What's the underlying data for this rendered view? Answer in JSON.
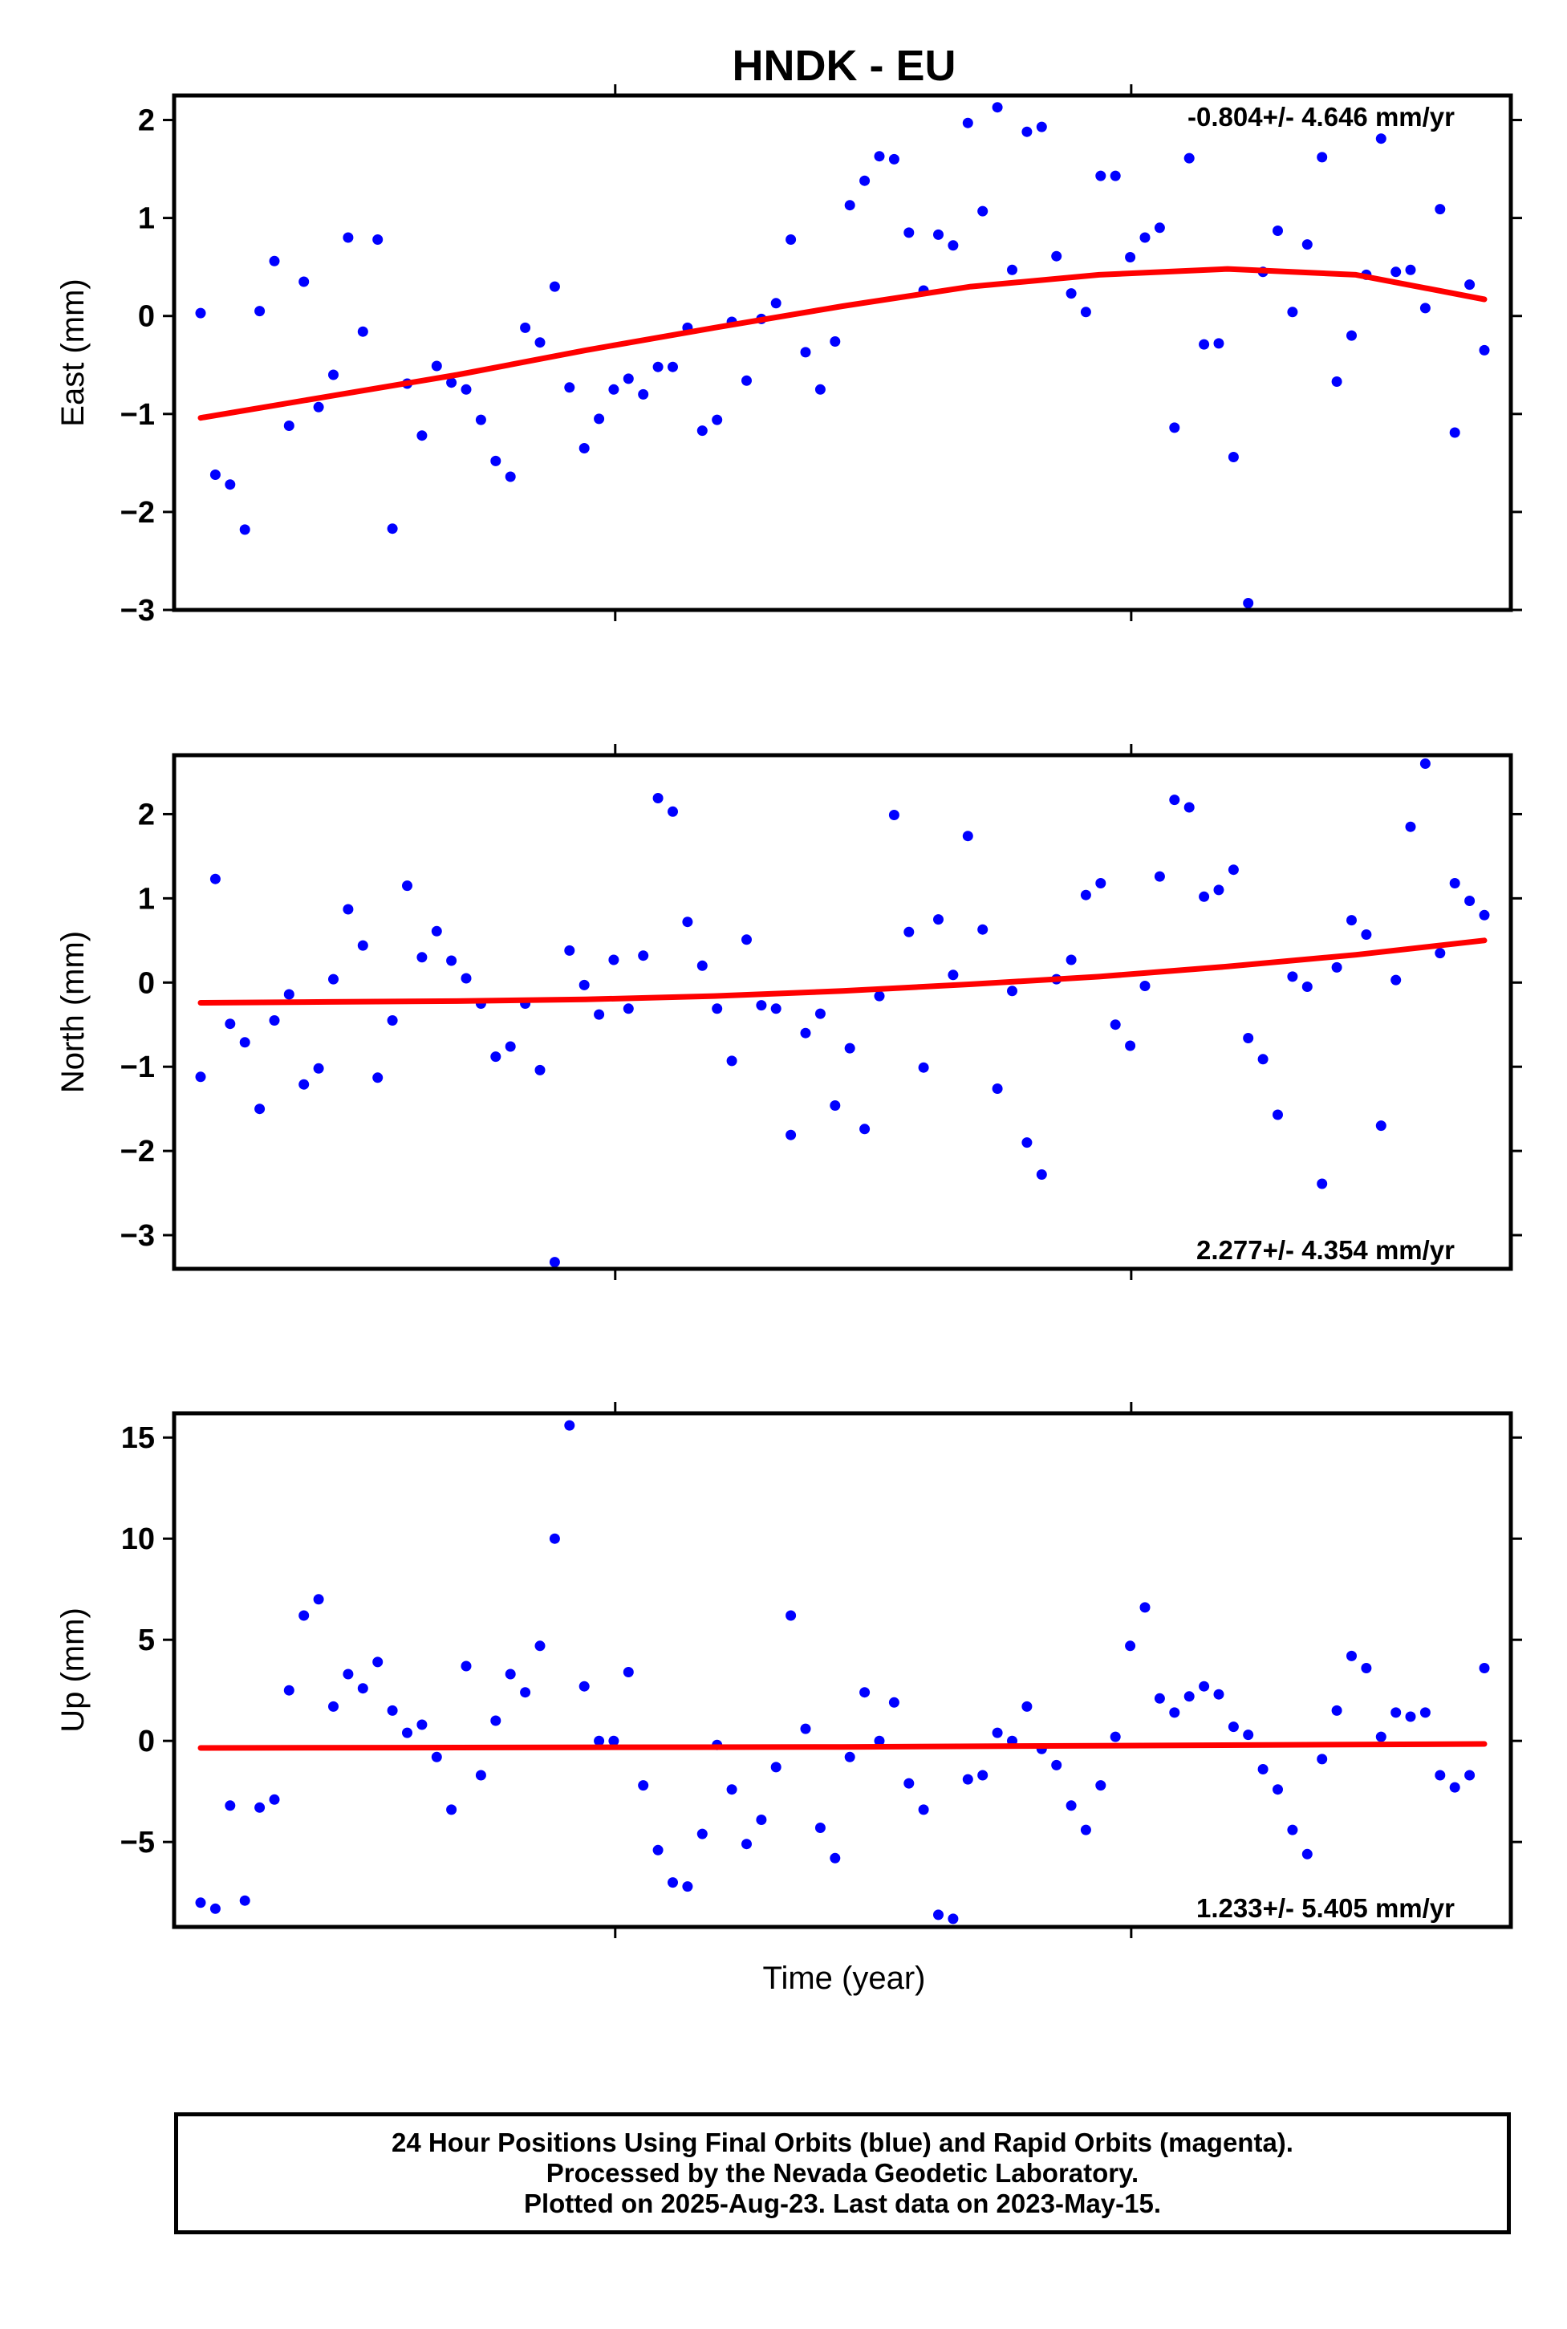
{
  "title": "HNDK - EU",
  "xlabel": "Time (year)",
  "colors": {
    "final_orbits": "#0000ff",
    "fit_line": "#ff0000",
    "frame": "#000000"
  },
  "caption": {
    "line1": "24 Hour Positions Using Final Orbits (blue) and Rapid Orbits (magenta).",
    "line2": "Processed by the Nevada Geodetic Laboratory.",
    "line3": "Plotted on 2025-Aug-23. Last data on 2023-May-15."
  },
  "chart_data": [
    {
      "type": "scatter",
      "ylabel": "East (mm)",
      "rate_label": "-0.804+/- 4.646 mm/yr",
      "rate_position": "top-right",
      "ylim": [
        -3.0,
        2.25
      ],
      "yticks": [
        2,
        1,
        0,
        -1,
        -2,
        -3
      ],
      "ytick_labels": [
        "2",
        "1",
        "0",
        "−1",
        "−2",
        "−3"
      ],
      "series": [
        {
          "y": [
            0.03,
            -1.62,
            -1.72,
            -2.18,
            0.05,
            0.56,
            -1.12,
            0.35,
            -0.93,
            -0.6,
            0.8,
            -0.16,
            0.78,
            -2.17,
            -0.69,
            -1.22,
            -0.51,
            -0.68,
            -0.75,
            -1.06,
            -1.48,
            -1.64,
            -0.12,
            -0.27,
            0.3,
            -0.73,
            -1.35,
            -1.05,
            -0.75,
            -0.64,
            -0.8,
            -0.52,
            -0.52,
            -0.12,
            -1.17,
            -1.06,
            -0.06,
            -0.66,
            -0.03,
            0.13,
            0.78,
            -0.37,
            -0.75,
            -0.26,
            1.13,
            1.38,
            1.63,
            1.6,
            0.85,
            0.26,
            0.83,
            0.72,
            1.97,
            1.07,
            2.13,
            0.47,
            1.88,
            1.93,
            0.61,
            0.23,
            0.04,
            1.43,
            1.43,
            0.6,
            0.8,
            0.9,
            -1.14,
            1.61,
            -0.29,
            -0.28,
            -1.44,
            -2.93,
            0.45,
            0.87,
            0.04,
            0.73,
            1.62,
            -0.67,
            -0.2,
            0.42,
            1.81,
            0.45,
            0.47,
            0.08,
            1.09,
            -1.19,
            0.32,
            -0.35
          ]
        }
      ],
      "fit": {
        "x": [
          0,
          0.1,
          0.2,
          0.3,
          0.4,
          0.5,
          0.6,
          0.7,
          0.8,
          0.9,
          1.0
        ],
        "y": [
          -1.04,
          -0.82,
          -0.6,
          -0.35,
          -0.12,
          0.1,
          0.3,
          0.42,
          0.48,
          0.42,
          0.17
        ]
      }
    },
    {
      "type": "scatter",
      "ylabel": "North (mm)",
      "rate_label": "2.277+/- 4.354 mm/yr",
      "rate_position": "bottom-right",
      "ylim": [
        -3.4,
        2.7
      ],
      "yticks": [
        2,
        1,
        0,
        -1,
        -2,
        -3
      ],
      "ytick_labels": [
        "2",
        "1",
        "0",
        "−1",
        "−2",
        "−3"
      ],
      "series": [
        {
          "y": [
            -1.12,
            1.23,
            -0.49,
            -0.71,
            -1.5,
            -0.45,
            -0.14,
            -1.21,
            -1.02,
            0.04,
            0.87,
            0.44,
            -1.13,
            -0.45,
            1.15,
            0.3,
            0.61,
            0.26,
            0.05,
            -0.25,
            -0.88,
            -0.76,
            -0.25,
            -1.04,
            -3.32,
            0.38,
            -0.03,
            -0.38,
            0.27,
            -0.31,
            0.32,
            2.19,
            2.03,
            0.72,
            0.2,
            -0.31,
            -0.93,
            0.51,
            -0.27,
            -0.31,
            -1.81,
            -0.6,
            -0.37,
            -1.46,
            -0.78,
            -1.74,
            -0.16,
            1.99,
            0.6,
            -1.01,
            0.75,
            0.09,
            1.74,
            0.63,
            -1.26,
            -0.1,
            -1.9,
            -2.28,
            0.04,
            0.27,
            1.04,
            1.18,
            -0.5,
            -0.75,
            -0.04,
            1.26,
            2.17,
            2.08,
            1.02,
            1.1,
            1.34,
            -0.66,
            -0.91,
            -1.57,
            0.07,
            -0.05,
            -2.39,
            0.18,
            0.74,
            0.57,
            -1.7,
            0.03,
            1.85,
            2.6,
            0.35,
            1.18,
            0.97,
            0.8
          ]
        }
      ],
      "fit": {
        "x": [
          0,
          0.1,
          0.2,
          0.3,
          0.4,
          0.5,
          0.6,
          0.7,
          0.8,
          0.9,
          1.0
        ],
        "y": [
          -0.24,
          -0.23,
          -0.22,
          -0.2,
          -0.16,
          -0.1,
          -0.02,
          0.07,
          0.19,
          0.33,
          0.5
        ]
      }
    },
    {
      "type": "scatter",
      "ylabel": "Up (mm)",
      "rate_label": "1.233+/- 5.405 mm/yr",
      "rate_position": "bottom-right",
      "ylim": [
        -9.2,
        16.2
      ],
      "yticks": [
        15,
        10,
        5,
        0,
        -5
      ],
      "ytick_labels": [
        "15",
        "10",
        "5",
        "0",
        "−5"
      ],
      "series": [
        {
          "y": [
            -8.0,
            -8.3,
            -3.2,
            -7.9,
            -3.3,
            -2.9,
            2.5,
            6.2,
            7.0,
            1.7,
            3.3,
            2.6,
            3.9,
            1.5,
            0.4,
            0.8,
            -0.8,
            -3.4,
            3.7,
            -1.7,
            1.0,
            3.3,
            2.4,
            4.7,
            10.0,
            15.6,
            2.7,
            0.0,
            0.0,
            3.4,
            -2.2,
            -5.4,
            -7.0,
            -7.2,
            -4.6,
            -0.2,
            -2.4,
            -5.1,
            -3.9,
            -1.3,
            6.2,
            0.6,
            -4.3,
            -5.8,
            -0.8,
            2.4,
            0.0,
            1.9,
            -2.1,
            -3.4,
            -8.6,
            -8.8,
            -1.9,
            -1.7,
            0.4,
            0.0,
            1.7,
            -0.4,
            -1.2,
            -3.2,
            -4.4,
            -2.2,
            0.2,
            4.7,
            6.6,
            2.1,
            1.4,
            2.2,
            2.7,
            2.3,
            0.7,
            0.3,
            -1.4,
            -2.4,
            -4.4,
            -5.6,
            -0.9,
            1.5,
            4.2,
            3.6,
            0.2,
            1.4,
            1.2,
            1.4,
            -1.7,
            -2.3,
            -1.7,
            3.6
          ]
        }
      ],
      "fit": {
        "x": [
          0,
          0.5,
          1.0
        ],
        "y": [
          -0.35,
          -0.3,
          -0.15
        ]
      }
    }
  ]
}
